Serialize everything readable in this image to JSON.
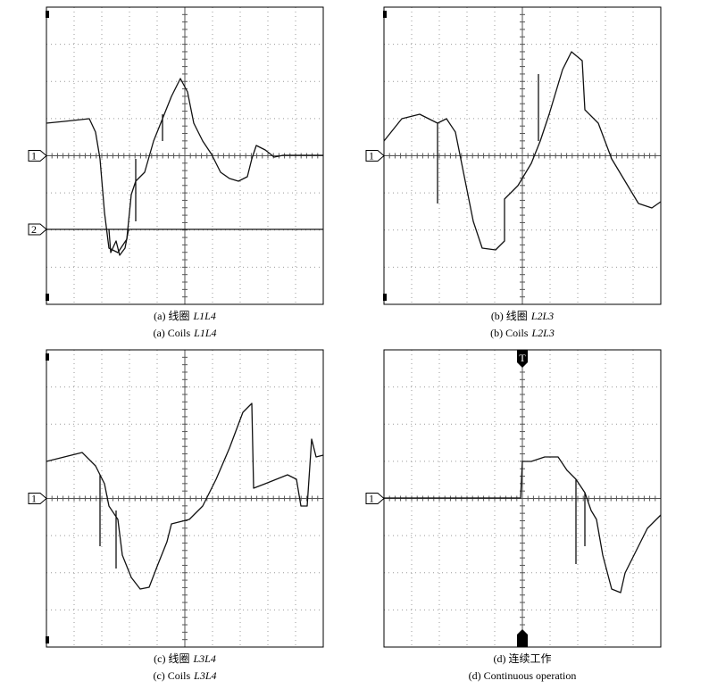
{
  "panels": [
    {
      "caption_cn": "(a) 线圈",
      "caption_cn_italic": "L1L4",
      "caption_en": "(a) Coils",
      "caption_en_italic": "L1L4",
      "channel_markers": [
        "1",
        "2"
      ]
    },
    {
      "caption_cn": "(b) 线圈",
      "caption_cn_italic": "L2L3",
      "caption_en": "(b) Coils",
      "caption_en_italic": "L2L3",
      "channel_markers": [
        "1"
      ]
    },
    {
      "caption_cn": "(c) 线圈",
      "caption_cn_italic": "L3L4",
      "caption_en": "(c) Coils",
      "caption_en_italic": "L3L4",
      "channel_markers": [
        "1"
      ]
    },
    {
      "caption_cn": "(d) 连续工作",
      "caption_en": "(d) Continuous operation",
      "channel_markers": [
        "1"
      ],
      "trigger_marker": "T"
    }
  ]
}
